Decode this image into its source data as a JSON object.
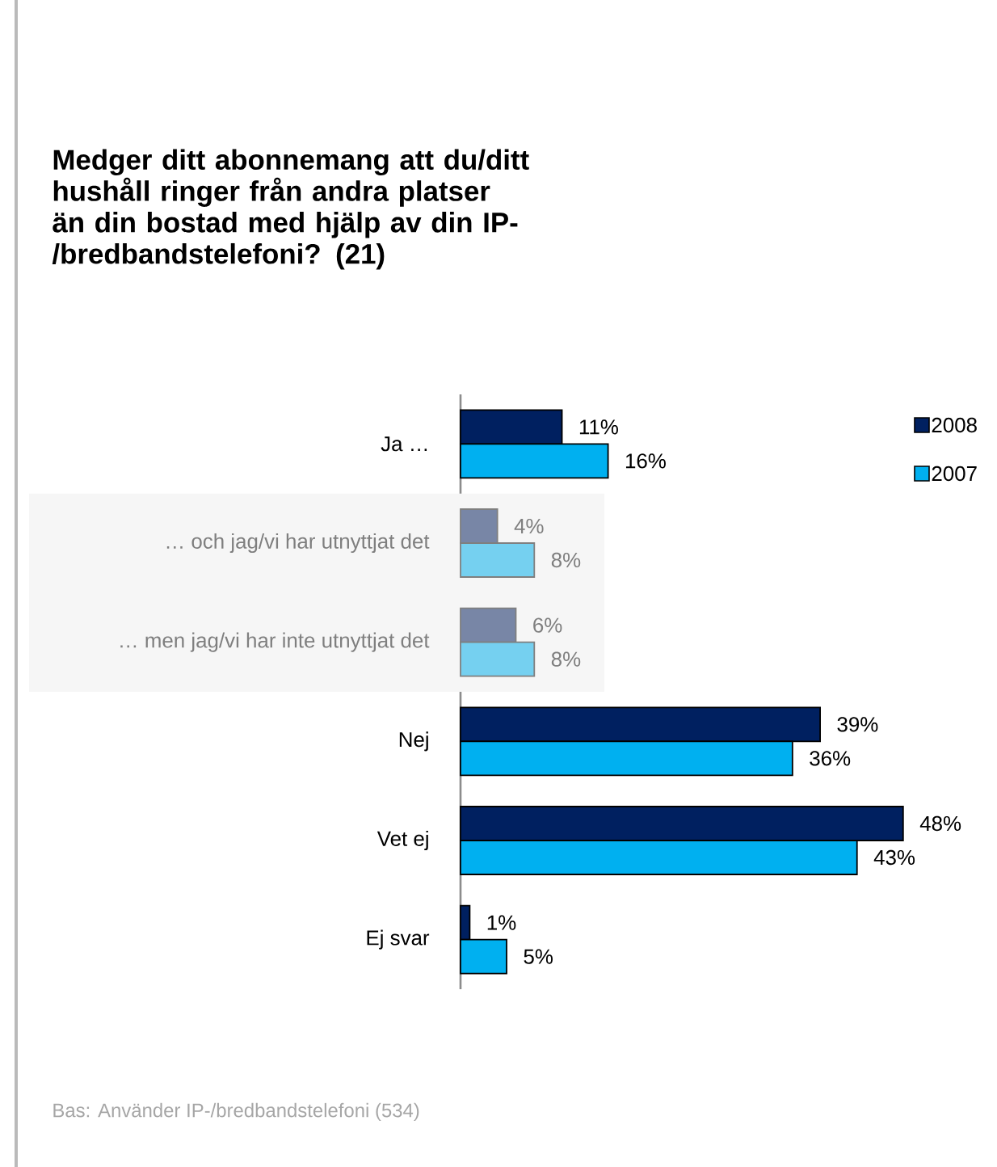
{
  "chart_data": {
    "type": "bar",
    "orientation": "horizontal",
    "title": "Medger ditt abonnemang att du/ditt hushåll ringer från andra platser än din bostad med hjälp av din IP-/bredbandstelefoni? (21)",
    "categories": [
      "Ja …",
      "… och jag/vi har utnyttjat det",
      "… men jag/vi har inte utnyttjat det",
      "Nej",
      "Vet ej",
      "Ej svar"
    ],
    "series": [
      {
        "name": "2008",
        "color": "#002060",
        "colors": [
          "#002060",
          "#7886a6",
          "#7886a6",
          "#002060",
          "#002060",
          "#002060"
        ],
        "values": [
          11,
          4,
          6,
          39,
          48,
          1
        ],
        "value_labels": [
          "11%",
          "4%",
          "6%",
          "39%",
          "48%",
          "1%"
        ]
      },
      {
        "name": "2007",
        "color": "#00b0f0",
        "colors": [
          "#00b0f0",
          "#75d0f0",
          "#75d0f0",
          "#00b0f0",
          "#00b0f0",
          "#00b0f0"
        ],
        "values": [
          16,
          8,
          8,
          36,
          43,
          5
        ],
        "value_labels": [
          "16%",
          "8%",
          "8%",
          "36%",
          "43%",
          "5%"
        ]
      }
    ],
    "bands": [
      {
        "axis": "y",
        "from": "… och jag/vi har utnyttjat det",
        "to": "… men jag/vi har inte utnyttjat det",
        "color": "#f6f6f6"
      }
    ],
    "legend": "top right",
    "annotations": [
      "Bas: Använder IP-/bredbandstelefoni (534)"
    ]
  }
}
